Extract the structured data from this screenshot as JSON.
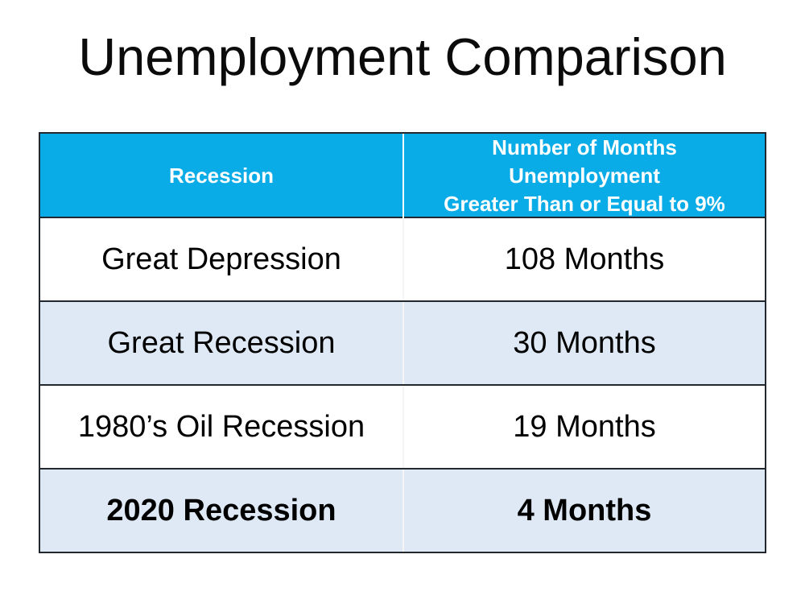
{
  "title": "Unemployment Comparison",
  "table": {
    "header": {
      "recession": "Recession",
      "months_line1": "Number of Months Unemployment",
      "months_line2": "Greater Than or Equal to 9%"
    },
    "rows": [
      {
        "recession": "Great Depression",
        "months": "108 Months",
        "shaded": false,
        "bold": false
      },
      {
        "recession": "Great Recession",
        "months": "30 Months",
        "shaded": true,
        "bold": false
      },
      {
        "recession": "1980’s Oil Recession",
        "months": "19 Months",
        "shaded": false,
        "bold": false
      },
      {
        "recession": "2020 Recession",
        "months": "4 Months",
        "shaded": true,
        "bold": true
      }
    ]
  },
  "colors": {
    "header_bg": "#0aace8",
    "header_text": "#ffffff",
    "shaded_row_bg": "#dee9f5",
    "table_border": "#23272e",
    "body_text": "#000000",
    "column_divider": "#f5f5f5"
  },
  "chart_data": {
    "type": "table",
    "title": "Unemployment Comparison",
    "columns": [
      "Recession",
      "Number of Months Unemployment Greater Than or Equal to 9%"
    ],
    "rows": [
      [
        "Great Depression",
        "108 Months"
      ],
      [
        "Great Recession",
        "30 Months"
      ],
      [
        "1980’s Oil Recession",
        "19 Months"
      ],
      [
        "2020 Recession",
        "4 Months"
      ]
    ],
    "values_in_months": [
      108,
      30,
      19,
      4
    ],
    "unit": "months"
  }
}
